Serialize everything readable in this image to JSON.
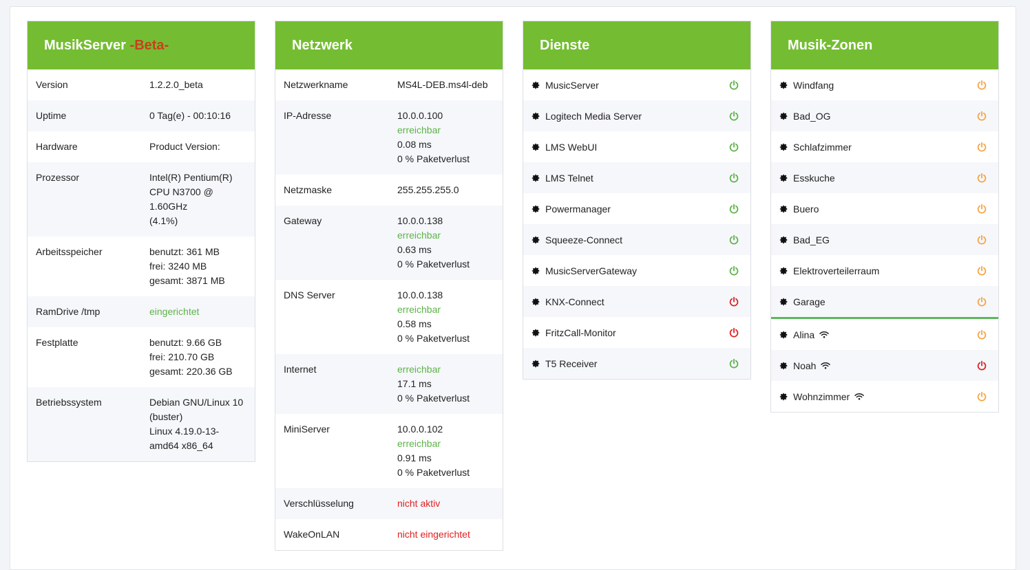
{
  "colors": {
    "header_green": "#74bd32",
    "ok_green": "#5cb347",
    "error_red": "#e02020",
    "zone_orange": "#f6a443",
    "beta_red": "#c8401e"
  },
  "musikserver": {
    "title": "MusikServer",
    "beta": "-Beta-",
    "rows": [
      {
        "label": "Version",
        "lines": [
          "1.2.2.0_beta"
        ]
      },
      {
        "label": "Uptime",
        "lines": [
          "0 Tag(e) - 00:10:16"
        ]
      },
      {
        "label": "Hardware",
        "lines": [
          "Product Version:"
        ]
      },
      {
        "label": "Prozessor",
        "lines": [
          "Intel(R) Pentium(R)",
          "CPU N3700 @",
          "1.60GHz",
          "(4.1%)"
        ]
      },
      {
        "label": "Arbeitsspeicher",
        "lines": [
          "benutzt: 361 MB",
          "frei: 3240 MB",
          "gesamt: 3871 MB"
        ]
      },
      {
        "label": "RamDrive /tmp",
        "lines": [
          "eingerichtet"
        ],
        "status": "ok"
      },
      {
        "label": "Festplatte",
        "lines": [
          "benutzt: 9.66 GB",
          "frei: 210.70 GB",
          "gesamt: 220.36 GB"
        ]
      },
      {
        "label": "Betriebssystem",
        "lines": [
          "Debian GNU/Linux 10",
          "(buster)",
          "Linux 4.19.0-13-",
          "amd64 x86_64"
        ]
      }
    ]
  },
  "netzwerk": {
    "title": "Netzwerk",
    "rows": [
      {
        "label": "Netzwerkname",
        "lines": [
          "MS4L-DEB.ms4l-deb"
        ]
      },
      {
        "label": "IP-Adresse",
        "lines": [
          "10.0.0.100",
          "erreichbar",
          "0.08 ms",
          "0 % Paketverlust"
        ]
      },
      {
        "label": "Netzmaske",
        "lines": [
          "255.255.255.0"
        ]
      },
      {
        "label": "Gateway",
        "lines": [
          "10.0.0.138",
          "erreichbar",
          "0.63 ms",
          "0 % Paketverlust"
        ]
      },
      {
        "label": "DNS Server",
        "lines": [
          "10.0.0.138",
          "erreichbar",
          "0.58 ms",
          "0 % Paketverlust"
        ]
      },
      {
        "label": "Internet",
        "lines": [
          "erreichbar",
          "17.1 ms",
          "0 % Paketverlust"
        ]
      },
      {
        "label": "MiniServer",
        "lines": [
          "10.0.0.102",
          "erreichbar",
          "0.91 ms",
          "0 % Paketverlust"
        ]
      },
      {
        "label": "Verschlüsselung",
        "lines": [
          "nicht aktiv"
        ],
        "status": "bad"
      },
      {
        "label": "WakeOnLAN",
        "lines": [
          "nicht eingerichtet"
        ],
        "status": "bad"
      }
    ]
  },
  "dienste": {
    "title": "Dienste",
    "items": [
      {
        "name": "MusicServer",
        "state": "on"
      },
      {
        "name": "Logitech Media Server",
        "state": "on"
      },
      {
        "name": "LMS WebUI",
        "state": "on"
      },
      {
        "name": "LMS Telnet",
        "state": "on"
      },
      {
        "name": "Powermanager",
        "state": "on"
      },
      {
        "name": "Squeeze-Connect",
        "state": "on"
      },
      {
        "name": "MusicServerGateway",
        "state": "on"
      },
      {
        "name": "KNX-Connect",
        "state": "off"
      },
      {
        "name": "FritzCall-Monitor",
        "state": "off"
      },
      {
        "name": "T5 Receiver",
        "state": "on"
      }
    ]
  },
  "zonen": {
    "title": "Musik-Zonen",
    "items": [
      {
        "name": "Windfang",
        "state": "standby"
      },
      {
        "name": "Bad_OG",
        "state": "standby"
      },
      {
        "name": "Schlafzimmer",
        "state": "standby"
      },
      {
        "name": "Esskuche",
        "state": "standby"
      },
      {
        "name": "Buero",
        "state": "standby"
      },
      {
        "name": "Bad_EG",
        "state": "standby"
      },
      {
        "name": "Elektroverteilerraum",
        "state": "standby"
      },
      {
        "name": "Garage",
        "state": "standby"
      }
    ],
    "wifi_items": [
      {
        "name": "Alina",
        "state": "standby"
      },
      {
        "name": "Noah",
        "state": "off"
      },
      {
        "name": "Wohnzimmer",
        "state": "standby"
      }
    ]
  }
}
